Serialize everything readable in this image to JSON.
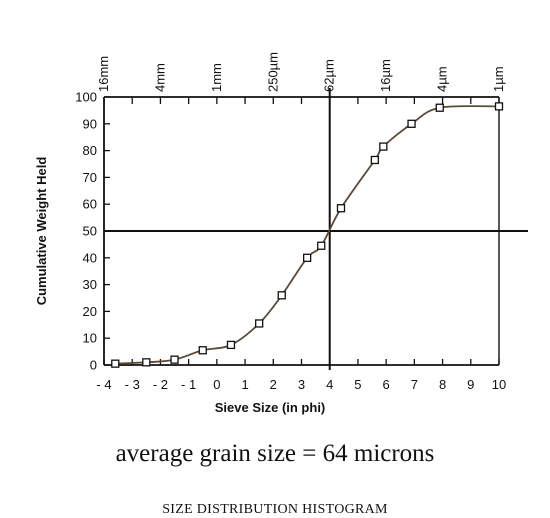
{
  "chart_data": {
    "type": "line",
    "title": "",
    "xlabel": "Sieve Size (in phi)",
    "ylabel": "Cumulative Weight Held",
    "xlim": [
      -4,
      10
    ],
    "ylim": [
      0,
      100
    ],
    "x_tick_labels": [
      "- 4",
      "- 3",
      "- 2",
      "- 1",
      "0",
      "1",
      "2",
      "3",
      "4",
      "5",
      "6",
      "7",
      "8",
      "9",
      "10"
    ],
    "y_tick_labels": [
      "0",
      "10",
      "20",
      "30",
      "40",
      "50",
      "60",
      "70",
      "80",
      "90",
      "100"
    ],
    "top_axis": {
      "labels": [
        "16mm",
        "4mm",
        "1mm",
        "250µm",
        "62µm",
        "16µm",
        "4µm",
        "1µm"
      ],
      "phi": [
        -4,
        -2,
        0,
        2,
        4,
        6,
        8,
        10
      ]
    },
    "reference_lines": {
      "horizontal_y": 50,
      "vertical_x": 4
    },
    "series": [
      {
        "x": [
          -3.6,
          -2.5,
          -1.5,
          -0.5,
          0.5,
          1.5,
          2.3,
          3.2,
          3.7,
          4.4,
          5.6,
          5.9,
          6.9,
          7.9,
          10
        ],
        "y": [
          0.5,
          1,
          2,
          5.5,
          7.5,
          15.5,
          26,
          40,
          44.5,
          58.5,
          76.5,
          81.5,
          90,
          96,
          96.5
        ]
      }
    ]
  },
  "captions": {
    "average": "average grain size = 64 microns",
    "histogram": "SIZE DISTRIBUTION HISTOGRAM"
  },
  "colors": {
    "ink": "#111111",
    "curve": "#5a4a3a"
  }
}
